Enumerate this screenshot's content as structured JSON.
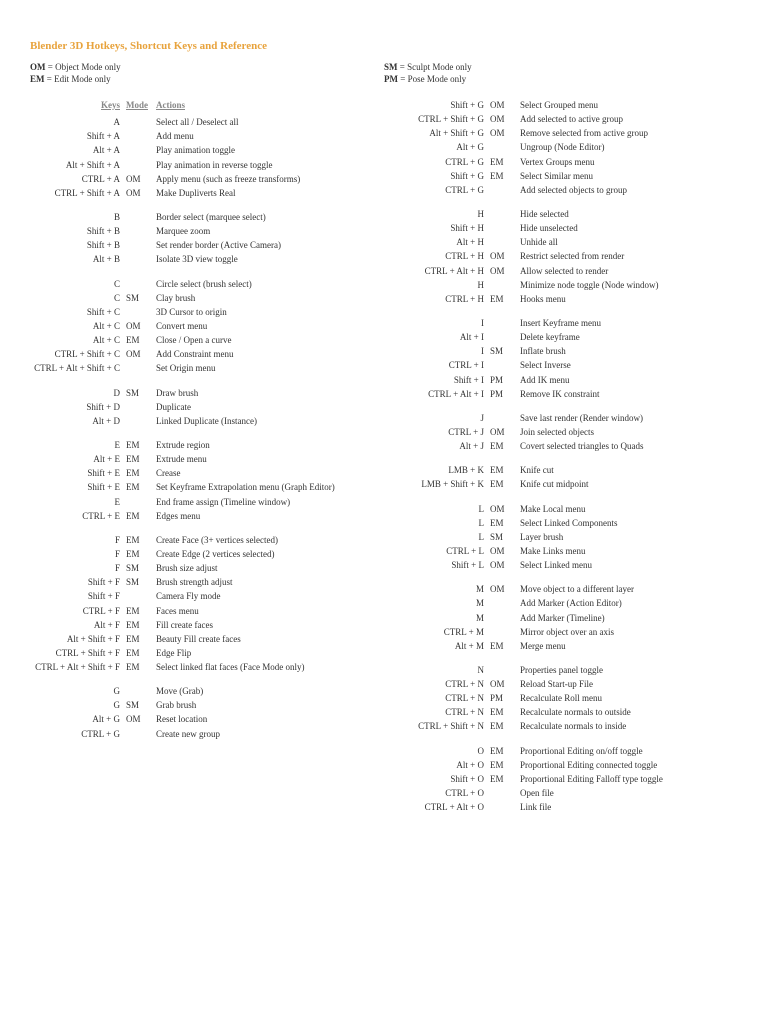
{
  "title": "Blender 3D Hotkeys, Shortcut Keys and Reference",
  "legend": {
    "om": {
      "abbr": "OM",
      "text": " = Object Mode only"
    },
    "sm": {
      "abbr": "SM",
      "text": " = Sculpt Mode only"
    },
    "em": {
      "abbr": "EM",
      "text": " = Edit Mode only"
    },
    "pm": {
      "abbr": "PM",
      "text": " = Pose Mode only"
    }
  },
  "headers": {
    "keys": "Keys",
    "mode": "Mode",
    "actions": "Actions"
  },
  "left": [
    {
      "k": "A",
      "m": "",
      "a": "Select all / Deselect all"
    },
    {
      "k": "Shift + A",
      "m": "",
      "a": "Add menu"
    },
    {
      "k": "Alt + A",
      "m": "",
      "a": "Play animation toggle"
    },
    {
      "k": "Alt + Shift + A",
      "m": "",
      "a": "Play animation in reverse toggle"
    },
    {
      "k": "CTRL + A",
      "m": "OM",
      "a": "Apply menu (such as freeze transforms)"
    },
    {
      "k": "CTRL + Shift + A",
      "m": "OM",
      "a": "Make Dupliverts Real"
    },
    {
      "gap": true
    },
    {
      "k": "B",
      "m": "",
      "a": "Border select (marquee select)"
    },
    {
      "k": "Shift + B",
      "m": "",
      "a": "Marquee zoom"
    },
    {
      "k": "Shift + B",
      "m": "",
      "a": "Set render border (Active Camera)"
    },
    {
      "k": "Alt + B",
      "m": "",
      "a": "Isolate 3D view toggle"
    },
    {
      "gap": true
    },
    {
      "k": "C",
      "m": "",
      "a": "Circle select (brush select)"
    },
    {
      "k": "C",
      "m": "SM",
      "a": "Clay brush"
    },
    {
      "k": "Shift + C",
      "m": "",
      "a": "3D Cursor to origin"
    },
    {
      "k": "Alt + C",
      "m": "OM",
      "a": "Convert menu"
    },
    {
      "k": "Alt + C",
      "m": "EM",
      "a": "Close / Open a curve"
    },
    {
      "k": "CTRL + Shift + C",
      "m": "OM",
      "a": "Add Constraint menu"
    },
    {
      "k": "CTRL + Alt + Shift + C",
      "m": "",
      "a": "Set Origin menu"
    },
    {
      "gap": true
    },
    {
      "k": "D",
      "m": "SM",
      "a": "Draw brush"
    },
    {
      "k": "Shift + D",
      "m": "",
      "a": "Duplicate"
    },
    {
      "k": "Alt + D",
      "m": "",
      "a": "Linked Duplicate (Instance)"
    },
    {
      "gap": true
    },
    {
      "k": "E",
      "m": "EM",
      "a": "Extrude region"
    },
    {
      "k": "Alt + E",
      "m": "EM",
      "a": "Extrude menu"
    },
    {
      "k": "Shift + E",
      "m": "EM",
      "a": "Crease"
    },
    {
      "k": "Shift + E",
      "m": "EM",
      "a": "Set Keyframe Extrapolation menu (Graph Editor)"
    },
    {
      "k": "E",
      "m": "",
      "a": "End frame assign (Timeline window)"
    },
    {
      "k": "CTRL + E",
      "m": "EM",
      "a": "Edges menu"
    },
    {
      "gap": true
    },
    {
      "k": "F",
      "m": "EM",
      "a": "Create Face (3+ vertices selected)"
    },
    {
      "k": "F",
      "m": "EM",
      "a": "Create Edge (2 vertices selected)"
    },
    {
      "k": "F",
      "m": "SM",
      "a": "Brush size adjust"
    },
    {
      "k": "Shift + F",
      "m": "SM",
      "a": "Brush strength adjust"
    },
    {
      "k": "Shift + F",
      "m": "",
      "a": "Camera Fly mode"
    },
    {
      "k": "CTRL + F",
      "m": "EM",
      "a": "Faces menu"
    },
    {
      "k": "Alt + F",
      "m": "EM",
      "a": "Fill create faces"
    },
    {
      "k": "Alt + Shift + F",
      "m": "EM",
      "a": "Beauty Fill create faces"
    },
    {
      "k": "CTRL + Shift + F",
      "m": "EM",
      "a": "Edge Flip"
    },
    {
      "k": "CTRL + Alt + Shift + F",
      "m": "EM",
      "a": "Select linked flat faces (Face Mode only)"
    },
    {
      "gap": true
    },
    {
      "k": "G",
      "m": "",
      "a": "Move (Grab)"
    },
    {
      "k": "G",
      "m": "SM",
      "a": "Grab brush"
    },
    {
      "k": "Alt + G",
      "m": "OM",
      "a": "Reset location"
    },
    {
      "k": "CTRL + G",
      "m": "",
      "a": "Create new group"
    }
  ],
  "right": [
    {
      "k": "Shift + G",
      "m": "OM",
      "a": "Select Grouped menu"
    },
    {
      "k": "CTRL + Shift + G",
      "m": "OM",
      "a": "Add selected to active group"
    },
    {
      "k": "Alt + Shift + G",
      "m": "OM",
      "a": "Remove selected from active group"
    },
    {
      "k": "Alt + G",
      "m": "",
      "a": "Ungroup (Node Editor)"
    },
    {
      "k": "CTRL + G",
      "m": "EM",
      "a": "Vertex Groups menu"
    },
    {
      "k": "Shift + G",
      "m": "EM",
      "a": "Select Similar menu"
    },
    {
      "k": "CTRL + G",
      "m": "",
      "a": "Add selected objects to group"
    },
    {
      "gap": true
    },
    {
      "k": "H",
      "m": "",
      "a": "Hide selected"
    },
    {
      "k": "Shift + H",
      "m": "",
      "a": "Hide unselected"
    },
    {
      "k": "Alt + H",
      "m": "",
      "a": "Unhide all"
    },
    {
      "k": "CTRL + H",
      "m": "OM",
      "a": "Restrict selected from render"
    },
    {
      "k": "CTRL + Alt + H",
      "m": "OM",
      "a": "Allow selected to render"
    },
    {
      "k": "H",
      "m": "",
      "a": "Minimize node toggle (Node window)"
    },
    {
      "k": "CTRL + H",
      "m": "EM",
      "a": "Hooks menu"
    },
    {
      "gap": true
    },
    {
      "k": "I",
      "m": "",
      "a": "Insert Keyframe menu"
    },
    {
      "k": "Alt + I",
      "m": "",
      "a": "Delete keyframe"
    },
    {
      "k": "I",
      "m": "SM",
      "a": "Inflate brush"
    },
    {
      "k": "CTRL + I",
      "m": "",
      "a": "Select Inverse"
    },
    {
      "k": "Shift + I",
      "m": "PM",
      "a": "Add IK menu"
    },
    {
      "k": "CTRL + Alt + I",
      "m": "PM",
      "a": "Remove IK constraint"
    },
    {
      "gap": true
    },
    {
      "k": "J",
      "m": "",
      "a": "Save last render (Render window)"
    },
    {
      "k": "CTRL + J",
      "m": "OM",
      "a": "Join selected objects"
    },
    {
      "k": "Alt + J",
      "m": "EM",
      "a": "Covert selected triangles to Quads"
    },
    {
      "gap": true
    },
    {
      "k": "LMB + K",
      "m": "EM",
      "a": "Knife cut"
    },
    {
      "k": "LMB + Shift + K",
      "m": "EM",
      "a": "Knife cut midpoint"
    },
    {
      "gap": true
    },
    {
      "k": "L",
      "m": "OM",
      "a": "Make Local menu"
    },
    {
      "k": "L",
      "m": "EM",
      "a": "Select Linked Components"
    },
    {
      "k": "L",
      "m": "SM",
      "a": "Layer brush"
    },
    {
      "k": "CTRL + L",
      "m": "OM",
      "a": "Make Links menu"
    },
    {
      "k": "Shift + L",
      "m": "OM",
      "a": "Select Linked menu"
    },
    {
      "gap": true
    },
    {
      "k": "M",
      "m": "OM",
      "a": "Move object to a different layer"
    },
    {
      "k": "M",
      "m": "",
      "a": "Add Marker (Action Editor)"
    },
    {
      "k": "M",
      "m": "",
      "a": "Add Marker (Timeline)"
    },
    {
      "k": "CTRL + M",
      "m": "",
      "a": "Mirror object over an axis"
    },
    {
      "k": "Alt + M",
      "m": "EM",
      "a": "Merge menu"
    },
    {
      "gap": true
    },
    {
      "k": "N",
      "m": "",
      "a": "Properties panel toggle"
    },
    {
      "k": "CTRL + N",
      "m": "OM",
      "a": "Reload Start-up File"
    },
    {
      "k": "CTRL + N",
      "m": "PM",
      "a": "Recalculate Roll menu"
    },
    {
      "k": "CTRL + N",
      "m": "EM",
      "a": "Recalculate normals to outside"
    },
    {
      "k": "CTRL + Shift + N",
      "m": "EM",
      "a": "Recalculate normals to inside"
    },
    {
      "gap": true
    },
    {
      "k": "O",
      "m": "EM",
      "a": "Proportional Editing on/off toggle"
    },
    {
      "k": "Alt + O",
      "m": "EM",
      "a": "Proportional Editing connected toggle"
    },
    {
      "k": "Shift + O",
      "m": "EM",
      "a": "Proportional Editing Falloff type toggle"
    },
    {
      "k": "CTRL + O",
      "m": "",
      "a": "Open file"
    },
    {
      "k": "CTRL + Alt + O",
      "m": "",
      "a": "Link file"
    }
  ]
}
